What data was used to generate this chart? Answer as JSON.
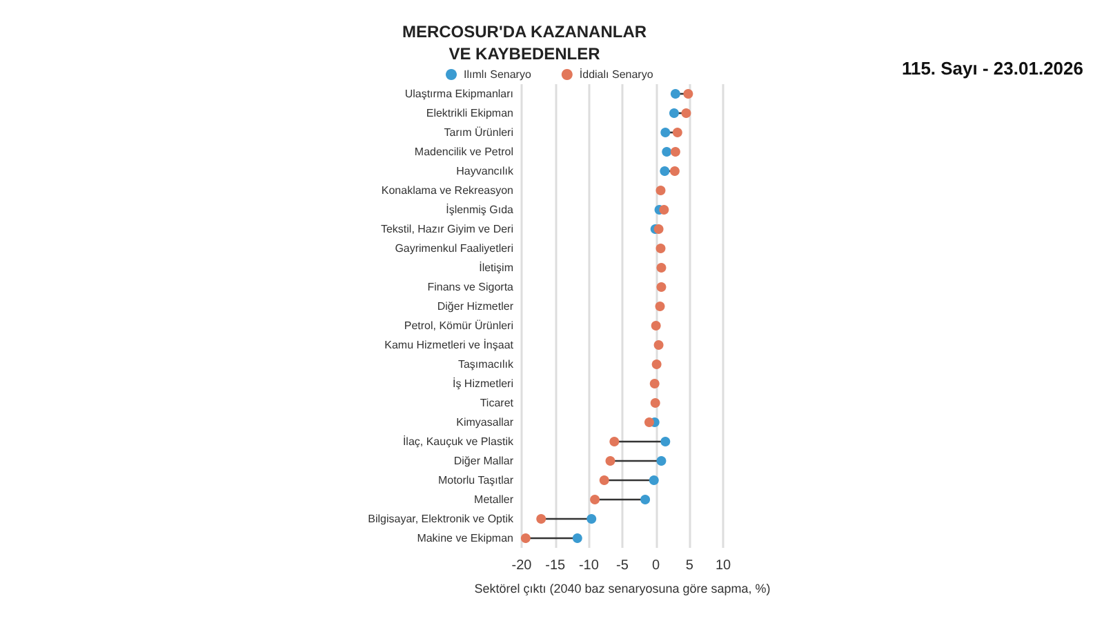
{
  "chart_data": {
    "type": "scatter",
    "orientation": "horizontal",
    "title": "MERCOSUR'DA KAZANANLAR VE KAYBEDENLER",
    "xlabel": "Sektörel çıktı (2040 baz senaryosuna göre sapma, %)",
    "annotations": [
      "115. Sayı - 23.01.2026"
    ],
    "categories": [
      "Ulaştırma Ekipmanları",
      "Elektrikli Ekipman",
      "Tarım Ürünleri",
      "Madencilik ve Petrol",
      "Hayvancılık",
      "Konaklama ve Rekreasyon",
      "İşlenmiş Gıda",
      "Tekstil, Hazır Giyim ve Deri",
      "Gayrimenkul Faaliyetleri",
      "İletişim",
      "Finans ve Sigorta",
      "Diğer Hizmetler",
      "Petrol, Kömür Ürünleri",
      "Kamu Hizmetleri ve İnşaat",
      "Taşımacılık",
      "İş Hizmetleri",
      "Ticaret",
      "Kimyasallar",
      "İlaç, Kauçuk ve Plastik",
      "Diğer Mallar",
      "Motorlu Taşıtlar",
      "Metaller",
      "Bilgisayar, Elektronik ve Optik",
      "Makine ve Ekipman"
    ],
    "series": [
      {
        "name": "Ilımlı Senaryo",
        "color": "#3b9bd1",
        "values": [
          2.9,
          2.7,
          1.4,
          1.6,
          1.3,
          null,
          0.5,
          -0.1,
          null,
          null,
          null,
          null,
          null,
          null,
          null,
          null,
          null,
          -0.2,
          1.4,
          0.8,
          -0.3,
          -1.6,
          -9.6,
          -11.7
        ]
      },
      {
        "name": "İddialı Senaryo",
        "color": "#e2775a",
        "values": [
          4.8,
          4.5,
          3.2,
          2.9,
          2.8,
          0.7,
          1.2,
          0.4,
          0.7,
          0.8,
          0.8,
          0.6,
          0.0,
          0.4,
          0.1,
          -0.2,
          -0.1,
          -1.0,
          -6.2,
          -6.8,
          -7.7,
          -9.1,
          -17.1,
          -19.4
        ]
      }
    ],
    "xlim": [
      -20,
      10
    ],
    "xticks": [
      -20,
      -15,
      -10,
      -5,
      0,
      5,
      10
    ],
    "grid": "x",
    "legend": "top",
    "marker": "circle"
  }
}
